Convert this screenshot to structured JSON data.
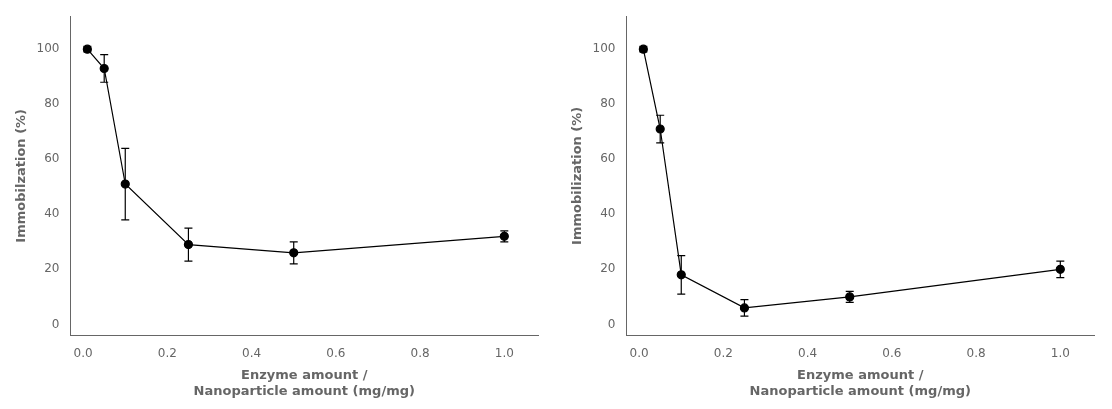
{
  "chart_data": [
    {
      "type": "line",
      "x": [
        0.01,
        0.05,
        0.1,
        0.25,
        0.5,
        1.0
      ],
      "values": [
        100,
        93,
        51,
        29,
        26,
        32
      ],
      "yerr": [
        1,
        5,
        13,
        6,
        4,
        2
      ],
      "xlabel": "Enzyme amount /\nNanoparticle amount (mg/mg)",
      "ylabel": "Immobilzation (%)",
      "xlim": [
        -0.03,
        1.08
      ],
      "ylim": [
        -4,
        112
      ],
      "xticks": [
        {
          "value": 0.0,
          "label": "0.0"
        },
        0.2,
        0.4,
        0.6,
        0.8,
        {
          "value": 1.0,
          "label": "1.0"
        }
      ],
      "yticks": [
        0,
        20,
        40,
        60,
        80,
        100
      ],
      "color": "#000000",
      "marker": "circle",
      "line_style": "solid",
      "grid": false
    },
    {
      "type": "line",
      "x": [
        0.01,
        0.05,
        0.1,
        0.25,
        0.5,
        1.0
      ],
      "values": [
        100,
        71,
        18,
        6,
        10,
        20
      ],
      "yerr": [
        1,
        5,
        7,
        3,
        2,
        3
      ],
      "xlabel": "Enzyme amount /\nNanoparticle amount (mg/mg)",
      "ylabel": "Immobilization (%)",
      "xlim": [
        -0.03,
        1.08
      ],
      "ylim": [
        -4,
        112
      ],
      "xticks": [
        {
          "value": 0.0,
          "label": "0.0"
        },
        0.2,
        0.4,
        0.6,
        0.8,
        {
          "value": 1.0,
          "label": "1.0"
        }
      ],
      "yticks": [
        0,
        20,
        40,
        60,
        80,
        100
      ],
      "color": "#000000",
      "marker": "circle",
      "line_style": "solid",
      "grid": false
    }
  ]
}
